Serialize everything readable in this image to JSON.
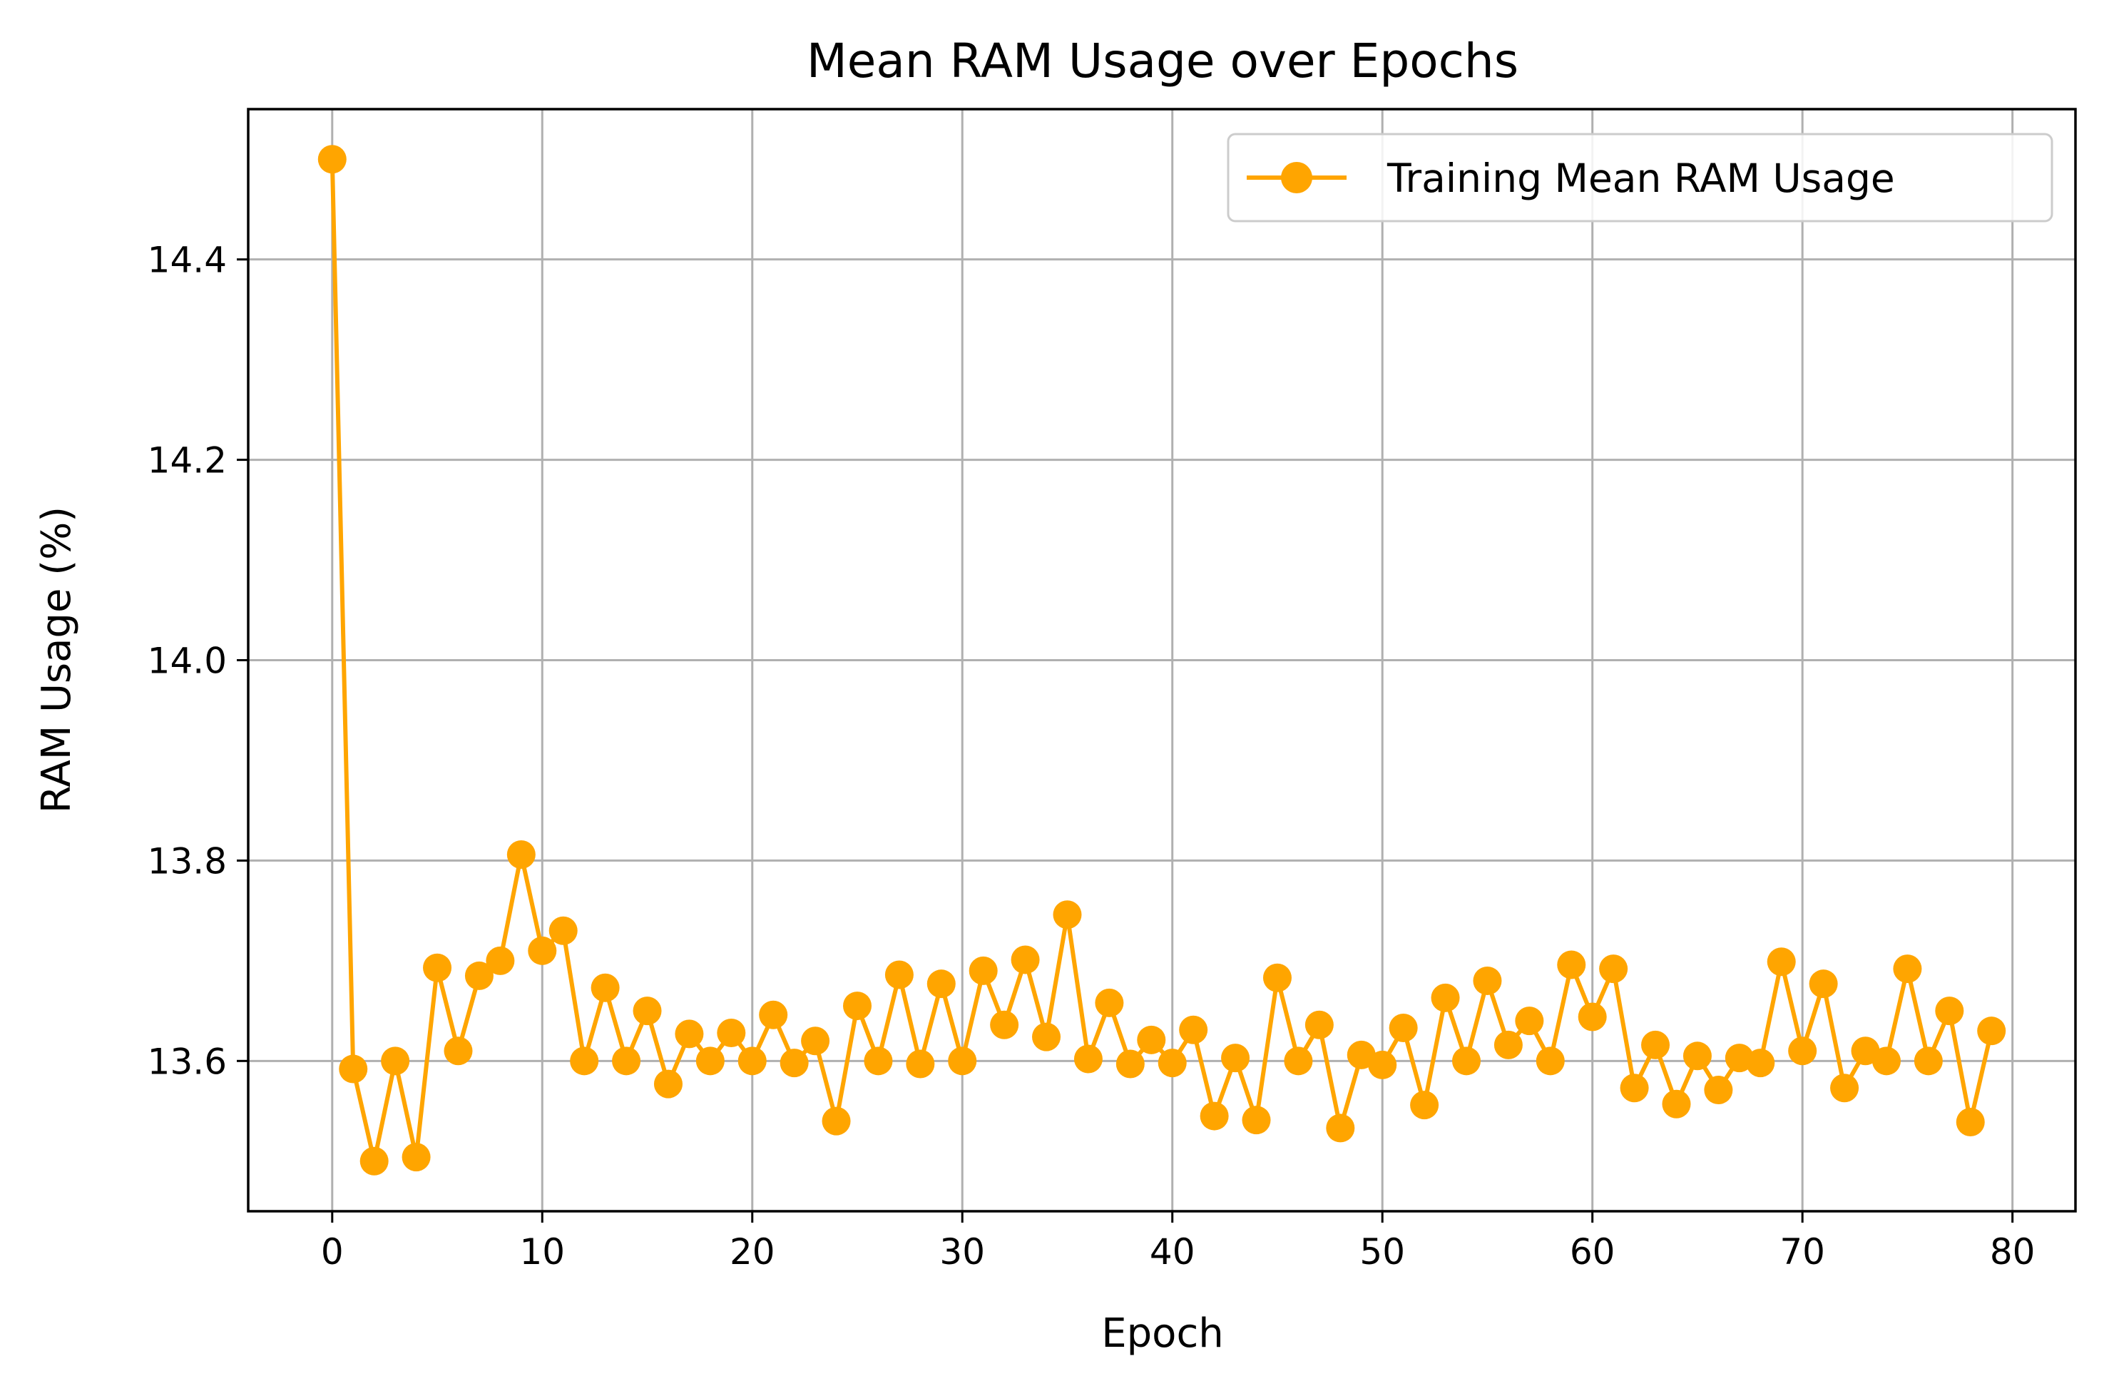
{
  "chart_data": {
    "type": "line",
    "title": "Mean RAM Usage over Epochs",
    "xlabel": "Epoch",
    "ylabel": "RAM Usage (%)",
    "xlim": [
      -4,
      83
    ],
    "ylim": [
      13.45,
      14.55
    ],
    "xticks": [
      0,
      10,
      20,
      30,
      40,
      50,
      60,
      70,
      80
    ],
    "xtick_labels": [
      "0",
      "10",
      "20",
      "30",
      "40",
      "50",
      "60",
      "70",
      "80"
    ],
    "yticks": [
      13.6,
      13.8,
      14.0,
      14.2,
      14.4
    ],
    "ytick_labels": [
      "13.6",
      "13.8",
      "14.0",
      "14.2",
      "14.4"
    ],
    "grid": true,
    "legend_position": "top-right",
    "series": [
      {
        "name": "Training Mean RAM Usage",
        "color": "#FFA500",
        "marker": "circle",
        "x": [
          0,
          1,
          2,
          3,
          4,
          5,
          6,
          7,
          8,
          9,
          10,
          11,
          12,
          13,
          14,
          15,
          16,
          17,
          18,
          19,
          20,
          21,
          22,
          23,
          24,
          25,
          26,
          27,
          28,
          29,
          30,
          31,
          32,
          33,
          34,
          35,
          36,
          37,
          38,
          39,
          40,
          41,
          42,
          43,
          44,
          45,
          46,
          47,
          48,
          49,
          50,
          51,
          52,
          53,
          54,
          55,
          56,
          57,
          58,
          59,
          60,
          61,
          62,
          63,
          64,
          65,
          66,
          67,
          68,
          69,
          70,
          71,
          72,
          73,
          74,
          75,
          76,
          77,
          78,
          79
        ],
        "y": [
          14.5,
          13.592,
          13.5,
          13.6,
          13.504,
          13.693,
          13.61,
          13.685,
          13.7,
          13.806,
          13.71,
          13.73,
          13.6,
          13.673,
          13.6,
          13.65,
          13.577,
          13.627,
          13.6,
          13.628,
          13.6,
          13.646,
          13.598,
          13.62,
          13.54,
          13.655,
          13.6,
          13.686,
          13.597,
          13.677,
          13.6,
          13.69,
          13.636,
          13.701,
          13.624,
          13.746,
          13.602,
          13.658,
          13.597,
          13.621,
          13.598,
          13.631,
          13.545,
          13.603,
          13.541,
          13.683,
          13.6,
          13.636,
          13.533,
          13.606,
          13.596,
          13.633,
          13.556,
          13.663,
          13.6,
          13.68,
          13.616,
          13.64,
          13.6,
          13.696,
          13.644,
          13.692,
          13.573,
          13.616,
          13.557,
          13.605,
          13.571,
          13.603,
          13.598,
          13.699,
          13.61,
          13.677,
          13.573,
          13.61,
          13.6,
          13.692,
          13.6,
          13.65,
          13.539,
          13.63
        ]
      }
    ]
  }
}
